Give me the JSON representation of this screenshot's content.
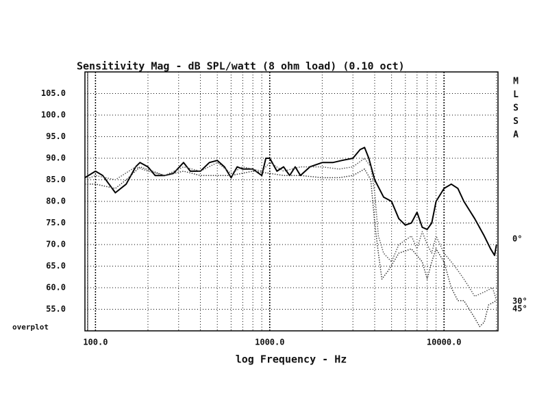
{
  "chart_data": {
    "type": "line",
    "title": "Sensitivity Mag - dB SPL/watt (8 ohm load) (0.10 oct)",
    "x_label": "log Frequency - Hz",
    "corner_label": "overplot",
    "side_letters": [
      "M",
      "L",
      "S",
      "S",
      "A"
    ],
    "log_x": true,
    "grid": true,
    "xlim": [
      87,
      20400
    ],
    "xticks": [
      {
        "value": 100,
        "label": "100.0"
      },
      {
        "value": 1000,
        "label": "1000.0"
      },
      {
        "value": 10000,
        "label": "10000.0"
      }
    ],
    "ylim": [
      50,
      110
    ],
    "yticks": [
      {
        "value": 55,
        "label": "55.0"
      },
      {
        "value": 60,
        "label": "60.0"
      },
      {
        "value": 65,
        "label": "65.0"
      },
      {
        "value": 70,
        "label": "70.0"
      },
      {
        "value": 75,
        "label": "75.0"
      },
      {
        "value": 80,
        "label": "80.0"
      },
      {
        "value": 85,
        "label": "85.0"
      },
      {
        "value": 90,
        "label": "90.0"
      },
      {
        "value": 95,
        "label": "95.0"
      },
      {
        "value": 100,
        "label": "100.0"
      },
      {
        "value": 105,
        "label": "105.0"
      }
    ],
    "series": [
      {
        "name": "0°",
        "color": "#000000",
        "style": "solid",
        "x": [
          87,
          100,
          110,
          130,
          150,
          170,
          180,
          200,
          220,
          250,
          280,
          320,
          350,
          400,
          450,
          500,
          550,
          600,
          650,
          700,
          800,
          900,
          950,
          1000,
          1100,
          1200,
          1300,
          1400,
          1500,
          1700,
          2000,
          2300,
          2600,
          3000,
          3300,
          3500,
          3700,
          4000,
          4500,
          5000,
          5500,
          6000,
          6500,
          7000,
          7500,
          8000,
          8500,
          9000,
          10000,
          11000,
          12000,
          13000,
          15000,
          17000,
          18500,
          19500,
          20000
        ],
        "values": [
          85.5,
          87,
          86,
          82,
          84,
          88,
          89,
          88,
          86,
          86,
          86.5,
          89,
          87,
          87,
          89,
          89.5,
          88,
          85.5,
          88,
          87.5,
          87.5,
          86,
          90,
          90,
          87,
          88,
          86,
          88,
          86,
          88,
          89,
          89,
          89.5,
          90,
          92,
          92.5,
          90,
          85,
          81,
          80,
          76,
          74.5,
          75,
          77.5,
          74,
          73.5,
          75,
          80,
          83,
          84,
          83,
          80,
          76,
          72,
          69,
          67.5,
          70
        ]
      },
      {
        "name": "30°",
        "color": "#555555",
        "style": "dotted",
        "x": [
          87,
          100,
          130,
          170,
          200,
          250,
          320,
          400,
          500,
          600,
          700,
          900,
          1000,
          1200,
          1500,
          2000,
          2500,
          3000,
          3500,
          3800,
          4000,
          4200,
          4500,
          5000,
          5500,
          6000,
          6500,
          7000,
          7500,
          8000,
          8500,
          9000,
          10000,
          11000,
          12000,
          13000,
          14000,
          15000,
          17000,
          19000,
          20000
        ],
        "values": [
          85,
          86,
          85,
          88,
          87,
          86,
          88,
          87,
          89,
          86.5,
          88,
          87,
          89,
          87,
          88,
          88,
          87.5,
          88,
          90,
          88,
          82,
          72,
          68,
          66,
          70,
          71,
          72,
          69,
          73,
          70,
          68,
          72,
          68,
          66,
          64,
          62,
          60,
          58,
          59,
          60,
          57
        ]
      },
      {
        "name": "45°",
        "color": "#333333",
        "style": "dotted",
        "x": [
          87,
          100,
          130,
          150,
          180,
          250,
          320,
          400,
          600,
          800,
          1000,
          1200,
          1500,
          2000,
          2500,
          3000,
          3500,
          3800,
          4000,
          4200,
          4400,
          4800,
          5500,
          6500,
          7500,
          8000,
          8500,
          9000,
          10000,
          11000,
          12000,
          13000,
          15000,
          16000,
          17000,
          18000,
          20000
        ],
        "values": [
          84,
          84,
          83,
          85,
          88,
          86,
          87,
          86,
          86,
          87,
          86.5,
          86,
          86,
          85.5,
          85.5,
          86,
          87.5,
          85,
          75,
          68,
          62,
          64,
          68,
          69,
          66,
          62,
          66,
          69,
          66,
          60,
          57,
          57,
          53,
          51,
          52,
          56,
          57
        ]
      }
    ]
  }
}
